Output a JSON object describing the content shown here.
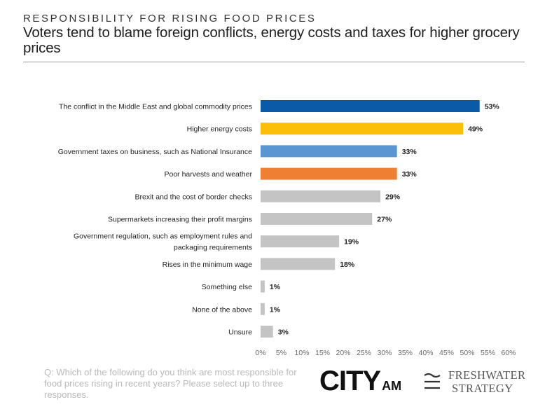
{
  "header": {
    "kicker": "RESPONSIBILITY FOR RISING FOOD PRICES",
    "title": "Voters tend to blame foreign conflicts, energy costs and taxes for higher grocery prices"
  },
  "chart_data": {
    "type": "bar",
    "orientation": "horizontal",
    "categories": [
      "The conflict in the Middle East and global commodity prices",
      "Higher energy costs",
      "Government taxes on business, such as National Insurance",
      "Poor harvests and weather",
      "Brexit and the cost of border checks",
      "Supermarkets increasing their profit margins",
      [
        "Government regulation, such as employment rules and",
        "packaging requirements"
      ],
      "Rises in the minimum wage",
      "Something else",
      "None of the above",
      "Unsure"
    ],
    "values": [
      53,
      49,
      33,
      33,
      29,
      27,
      19,
      18,
      1,
      1,
      3
    ],
    "value_labels": [
      "53%",
      "49%",
      "33%",
      "33%",
      "29%",
      "27%",
      "19%",
      "18%",
      "1%",
      "1%",
      "3%"
    ],
    "colors": [
      "#0b5aa7",
      "#fbbf09",
      "#5a97d2",
      "#ef7f33",
      "#c4c4c4",
      "#c4c4c4",
      "#c4c4c4",
      "#c4c4c4",
      "#c4c4c4",
      "#c4c4c4",
      "#c4c4c4"
    ],
    "xlim": [
      0,
      60
    ],
    "xticks": [
      "0%",
      "5%",
      "10%",
      "15%",
      "20%",
      "25%",
      "30%",
      "35%",
      "40%",
      "45%",
      "50%",
      "55%",
      "60%"
    ],
    "grid": false,
    "legend": "none"
  },
  "footer": {
    "question": "Q: Which of the following do you think are most responsible for food prices rising in recent years? Please select up to three responses.",
    "logo_city": "CITY",
    "logo_city_suffix": "AM",
    "logo_fw_line1": "FRESHWATER",
    "logo_fw_line2": "STRATEGY"
  }
}
